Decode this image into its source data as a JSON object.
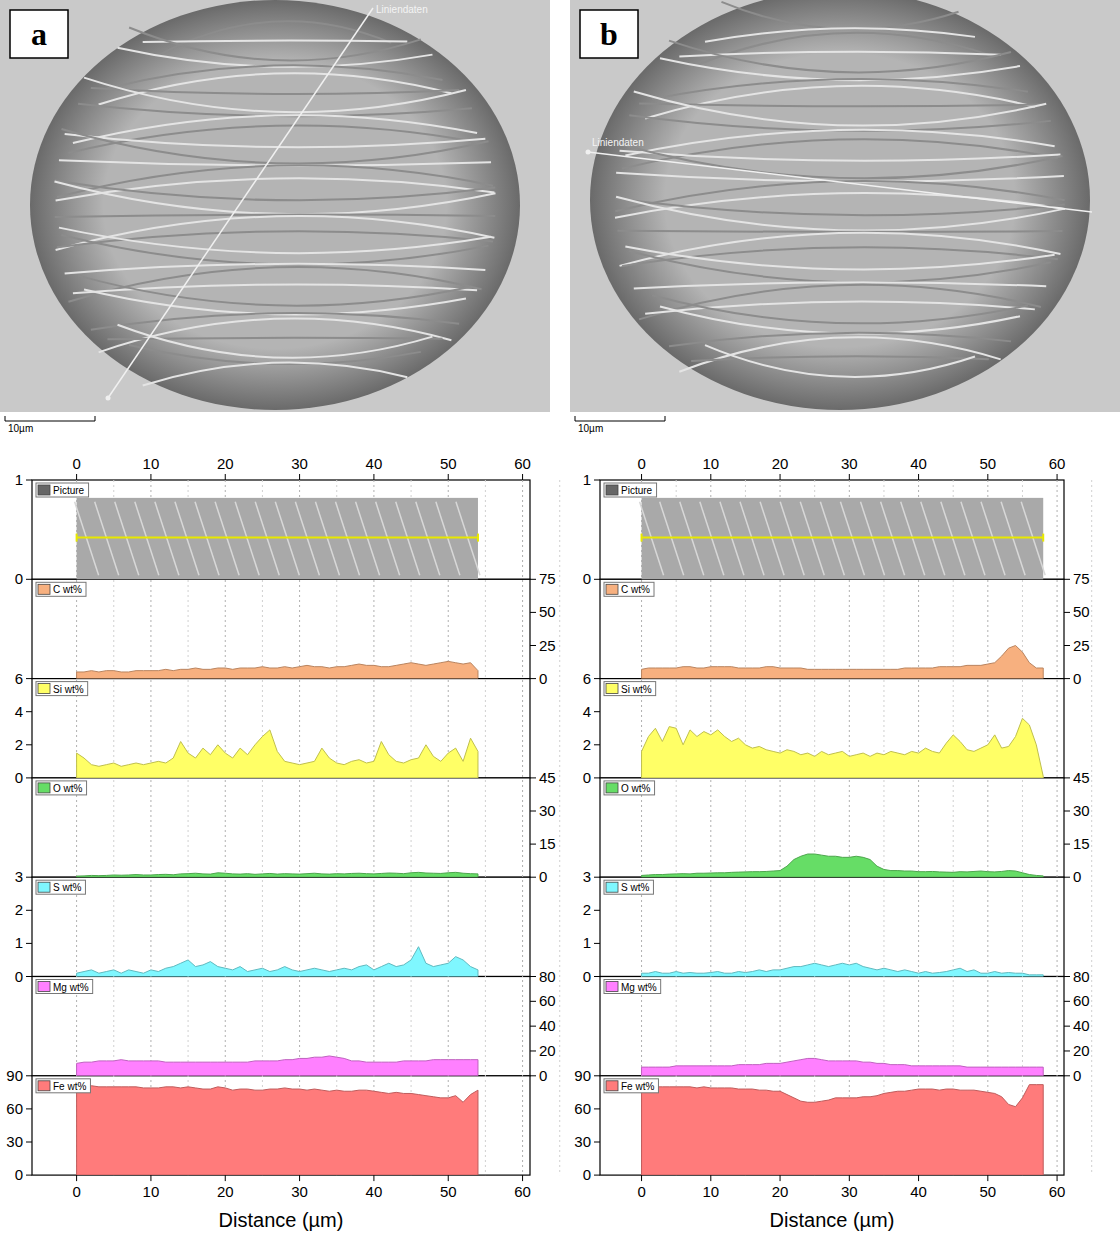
{
  "chart_data": [
    {
      "type": "area",
      "panel": "a",
      "image_label": "Liniendaten",
      "scale_bar": "10µm",
      "picture_label": "Picture",
      "picture_ylim": [
        0,
        1
      ],
      "picture_yticks": [
        0,
        1
      ],
      "xlabel": "Distance (µm)",
      "xlim": [
        -6,
        61
      ],
      "xticks": [
        0,
        10,
        20,
        30,
        40,
        50,
        60
      ],
      "grid": true,
      "x": [
        0,
        1,
        2,
        3,
        4,
        5,
        6,
        7,
        8,
        9,
        10,
        11,
        12,
        13,
        14,
        15,
        16,
        17,
        18,
        19,
        20,
        21,
        22,
        23,
        24,
        25,
        26,
        27,
        28,
        29,
        30,
        31,
        32,
        33,
        34,
        35,
        36,
        37,
        38,
        39,
        40,
        41,
        42,
        43,
        44,
        45,
        46,
        47,
        48,
        49,
        50,
        51,
        52,
        53,
        54
      ],
      "series": [
        {
          "name": "C wt%",
          "color": "#f7b07f",
          "axis": "y2",
          "ylim": [
            0,
            75
          ],
          "yticks": [
            0,
            25,
            50,
            75
          ],
          "values": [
            5,
            5,
            6,
            5,
            6,
            6,
            5,
            5,
            6,
            6,
            6,
            6,
            7,
            6,
            7,
            7,
            8,
            7,
            7,
            8,
            8,
            7,
            8,
            8,
            8,
            9,
            8,
            8,
            9,
            8,
            9,
            10,
            9,
            9,
            8,
            9,
            9,
            10,
            11,
            10,
            10,
            9,
            9,
            10,
            11,
            12,
            11,
            10,
            11,
            12,
            13,
            12,
            11,
            12,
            6
          ]
        },
        {
          "name": "Si wt%",
          "color": "#ffff66",
          "axis": "y",
          "ylim": [
            0,
            6
          ],
          "yticks": [
            0,
            2,
            4,
            6
          ],
          "values": [
            1.5,
            1.2,
            0.8,
            0.7,
            0.8,
            0.9,
            0.7,
            0.8,
            0.9,
            0.8,
            0.9,
            1.0,
            0.9,
            1.2,
            2.2,
            1.5,
            1.2,
            1.8,
            1.4,
            2.0,
            1.5,
            1.2,
            1.8,
            1.4,
            2.0,
            2.5,
            2.9,
            1.6,
            1.0,
            0.9,
            0.8,
            0.9,
            1.0,
            1.8,
            1.2,
            0.9,
            0.8,
            1.0,
            1.1,
            0.9,
            1.0,
            2.2,
            1.4,
            1.0,
            0.9,
            1.1,
            1.2,
            2.0,
            1.3,
            1.0,
            1.5,
            1.8,
            1.0,
            2.4,
            1.6
          ]
        },
        {
          "name": "O wt%",
          "color": "#66dd66",
          "axis": "y2",
          "ylim": [
            0,
            45
          ],
          "yticks": [
            0,
            15,
            30,
            45
          ],
          "values": [
            0.5,
            0.6,
            0.8,
            0.7,
            0.8,
            1.0,
            0.9,
            1.0,
            1.2,
            1.0,
            1.0,
            1.2,
            1.3,
            1.1,
            1.5,
            1.6,
            1.8,
            1.5,
            1.4,
            2.0,
            1.8,
            1.5,
            1.4,
            1.6,
            1.3,
            1.5,
            1.7,
            1.4,
            1.6,
            1.5,
            1.4,
            1.6,
            1.8,
            1.5,
            1.4,
            1.6,
            1.5,
            1.7,
            1.8,
            1.6,
            1.5,
            1.7,
            1.9,
            1.8,
            1.6,
            2.0,
            2.2,
            1.9,
            1.8,
            1.7,
            2.0,
            2.2,
            1.8,
            1.6,
            1.5
          ]
        },
        {
          "name": "S wt%",
          "color": "#7ff7ff",
          "axis": "y",
          "ylim": [
            0,
            3
          ],
          "yticks": [
            0,
            1,
            2,
            3
          ],
          "values": [
            0.1,
            0.15,
            0.2,
            0.1,
            0.15,
            0.2,
            0.1,
            0.2,
            0.15,
            0.1,
            0.2,
            0.15,
            0.25,
            0.3,
            0.4,
            0.5,
            0.3,
            0.35,
            0.45,
            0.3,
            0.25,
            0.2,
            0.3,
            0.15,
            0.2,
            0.25,
            0.15,
            0.2,
            0.3,
            0.2,
            0.15,
            0.2,
            0.25,
            0.2,
            0.15,
            0.2,
            0.25,
            0.2,
            0.3,
            0.35,
            0.2,
            0.3,
            0.4,
            0.3,
            0.35,
            0.5,
            0.9,
            0.4,
            0.3,
            0.35,
            0.4,
            0.6,
            0.5,
            0.3,
            0.2
          ]
        },
        {
          "name": "Mg wt%",
          "color": "#ff80ff",
          "axis": "y2",
          "ylim": [
            0,
            80
          ],
          "yticks": [
            0,
            20,
            40,
            60,
            80
          ],
          "values": [
            10,
            11,
            11,
            12,
            12,
            12,
            13,
            12,
            12,
            12,
            12,
            12,
            11,
            11,
            11,
            11,
            11,
            11,
            11,
            11,
            11,
            11,
            11,
            11,
            12,
            12,
            12,
            12,
            13,
            13,
            14,
            14,
            15,
            15,
            16,
            15,
            14,
            12,
            12,
            11,
            11,
            11,
            11,
            11,
            12,
            12,
            12,
            12,
            13,
            13,
            13,
            13,
            13,
            13,
            13
          ]
        },
        {
          "name": "Fe wt%",
          "color": "#ff7b7b",
          "axis": "y",
          "ylim": [
            0,
            90
          ],
          "yticks": [
            0,
            30,
            60,
            90
          ],
          "values": [
            80,
            81,
            81,
            80,
            80,
            80,
            80,
            80,
            80,
            79,
            79,
            79,
            80,
            80,
            79,
            80,
            79,
            78,
            78,
            80,
            79,
            77,
            78,
            78,
            77,
            77,
            78,
            78,
            79,
            78,
            78,
            77,
            78,
            77,
            76,
            77,
            76,
            76,
            77,
            77,
            76,
            75,
            74,
            75,
            74,
            74,
            73,
            72,
            71,
            70,
            70,
            72,
            66,
            73,
            77
          ]
        }
      ]
    },
    {
      "type": "area",
      "panel": "b",
      "image_label": "Liniendaten",
      "scale_bar": "10µm",
      "picture_label": "Picture",
      "picture_ylim": [
        0,
        1
      ],
      "picture_yticks": [
        0,
        1
      ],
      "xlabel": "Distance (µm)",
      "xlim": [
        -6,
        61
      ],
      "xticks": [
        0,
        10,
        20,
        30,
        40,
        50,
        60
      ],
      "grid": true,
      "x": [
        0,
        1,
        2,
        3,
        4,
        5,
        6,
        7,
        8,
        9,
        10,
        11,
        12,
        13,
        14,
        15,
        16,
        17,
        18,
        19,
        20,
        21,
        22,
        23,
        24,
        25,
        26,
        27,
        28,
        29,
        30,
        31,
        32,
        33,
        34,
        35,
        36,
        37,
        38,
        39,
        40,
        41,
        42,
        43,
        44,
        45,
        46,
        47,
        48,
        49,
        50,
        51,
        52,
        53,
        54,
        55,
        56,
        57,
        58
      ],
      "series": [
        {
          "name": "C wt%",
          "color": "#f7b07f",
          "axis": "y2",
          "ylim": [
            0,
            75
          ],
          "yticks": [
            0,
            25,
            50,
            75
          ],
          "values": [
            7,
            8,
            8,
            8,
            8,
            8,
            9,
            9,
            8,
            8,
            9,
            9,
            9,
            9,
            8,
            8,
            8,
            8,
            9,
            9,
            8,
            8,
            8,
            8,
            7,
            7,
            7,
            7,
            7,
            7,
            7,
            7,
            7,
            7,
            7,
            7,
            7,
            7,
            8,
            8,
            8,
            8,
            8,
            9,
            9,
            9,
            9,
            10,
            10,
            10,
            11,
            12,
            17,
            23,
            25,
            20,
            12,
            8,
            8
          ]
        },
        {
          "name": "Si wt%",
          "color": "#ffff66",
          "axis": "y",
          "ylim": [
            0,
            6
          ],
          "yticks": [
            0,
            2,
            4,
            6
          ],
          "values": [
            1.6,
            2.5,
            3.0,
            2.2,
            3.1,
            3.0,
            2.0,
            2.9,
            2.5,
            2.8,
            2.6,
            2.9,
            2.5,
            2.2,
            2.4,
            2.0,
            1.8,
            1.9,
            1.7,
            1.6,
            1.5,
            1.7,
            1.6,
            1.4,
            1.5,
            1.3,
            1.6,
            1.4,
            1.5,
            1.6,
            1.3,
            1.4,
            1.5,
            1.3,
            1.5,
            1.4,
            1.6,
            1.5,
            1.4,
            1.6,
            1.5,
            1.8,
            1.6,
            1.5,
            2.1,
            2.6,
            2.2,
            1.7,
            1.6,
            1.8,
            2.0,
            2.6,
            1.8,
            1.9,
            2.5,
            3.6,
            3.2,
            2.0,
            0.1
          ]
        },
        {
          "name": "O wt%",
          "color": "#66dd66",
          "axis": "y2",
          "ylim": [
            0,
            45
          ],
          "yticks": [
            0,
            15,
            30,
            45
          ],
          "values": [
            0.8,
            1.0,
            1.2,
            1.2,
            1.4,
            1.5,
            1.6,
            1.5,
            1.8,
            1.8,
            1.9,
            2.0,
            2.0,
            2.2,
            2.3,
            2.4,
            2.5,
            2.5,
            2.6,
            2.8,
            3.0,
            5.0,
            8.0,
            9.5,
            10.5,
            10.5,
            10.0,
            9.5,
            9.5,
            9.0,
            9.0,
            9.5,
            9.0,
            8.0,
            5.0,
            3.5,
            3.0,
            3.0,
            2.8,
            2.8,
            2.5,
            2.5,
            2.6,
            2.4,
            2.3,
            2.2,
            2.5,
            2.4,
            2.6,
            2.8,
            2.5,
            2.4,
            2.6,
            3.0,
            2.8,
            2.0,
            1.2,
            0.8,
            0.6
          ]
        },
        {
          "name": "S wt%",
          "color": "#7ff7ff",
          "axis": "y",
          "ylim": [
            0,
            3
          ],
          "yticks": [
            0,
            1,
            2,
            3
          ],
          "values": [
            0.1,
            0.1,
            0.15,
            0.1,
            0.1,
            0.15,
            0.1,
            0.12,
            0.1,
            0.1,
            0.12,
            0.15,
            0.1,
            0.1,
            0.15,
            0.12,
            0.15,
            0.2,
            0.15,
            0.2,
            0.2,
            0.25,
            0.3,
            0.3,
            0.35,
            0.4,
            0.35,
            0.3,
            0.35,
            0.4,
            0.35,
            0.4,
            0.3,
            0.25,
            0.2,
            0.25,
            0.2,
            0.15,
            0.2,
            0.15,
            0.1,
            0.15,
            0.1,
            0.12,
            0.15,
            0.2,
            0.25,
            0.15,
            0.2,
            0.1,
            0.1,
            0.15,
            0.1,
            0.12,
            0.1,
            0.1,
            0.05,
            0.05,
            0.05
          ]
        },
        {
          "name": "Mg wt%",
          "color": "#ff80ff",
          "axis": "y2",
          "ylim": [
            0,
            80
          ],
          "yticks": [
            0,
            20,
            40,
            60,
            80
          ],
          "values": [
            7,
            7,
            7,
            7,
            7,
            8,
            8,
            8,
            8,
            8,
            8,
            8,
            8,
            8,
            9,
            9,
            9,
            9,
            10,
            10,
            10,
            11,
            12,
            13,
            14,
            14,
            13,
            12,
            12,
            12,
            12,
            12,
            11,
            11,
            10,
            10,
            9,
            9,
            9,
            8,
            8,
            8,
            8,
            8,
            8,
            8,
            8,
            7,
            7,
            7,
            7,
            7,
            7,
            7,
            7,
            7,
            7,
            7,
            7
          ]
        },
        {
          "name": "Fe wt%",
          "color": "#ff7b7b",
          "axis": "y",
          "ylim": [
            0,
            90
          ],
          "yticks": [
            0,
            30,
            60,
            90
          ],
          "values": [
            80,
            81,
            80,
            80,
            80,
            80,
            80,
            80,
            79,
            80,
            79,
            79,
            79,
            79,
            78,
            78,
            78,
            77,
            77,
            76,
            76,
            73,
            70,
            67,
            66,
            66,
            67,
            68,
            70,
            70,
            70,
            70,
            71,
            71,
            72,
            74,
            75,
            76,
            76,
            77,
            78,
            78,
            78,
            77,
            78,
            78,
            77,
            77,
            77,
            76,
            75,
            74,
            71,
            64,
            62,
            70,
            82,
            82,
            82
          ]
        }
      ]
    }
  ]
}
